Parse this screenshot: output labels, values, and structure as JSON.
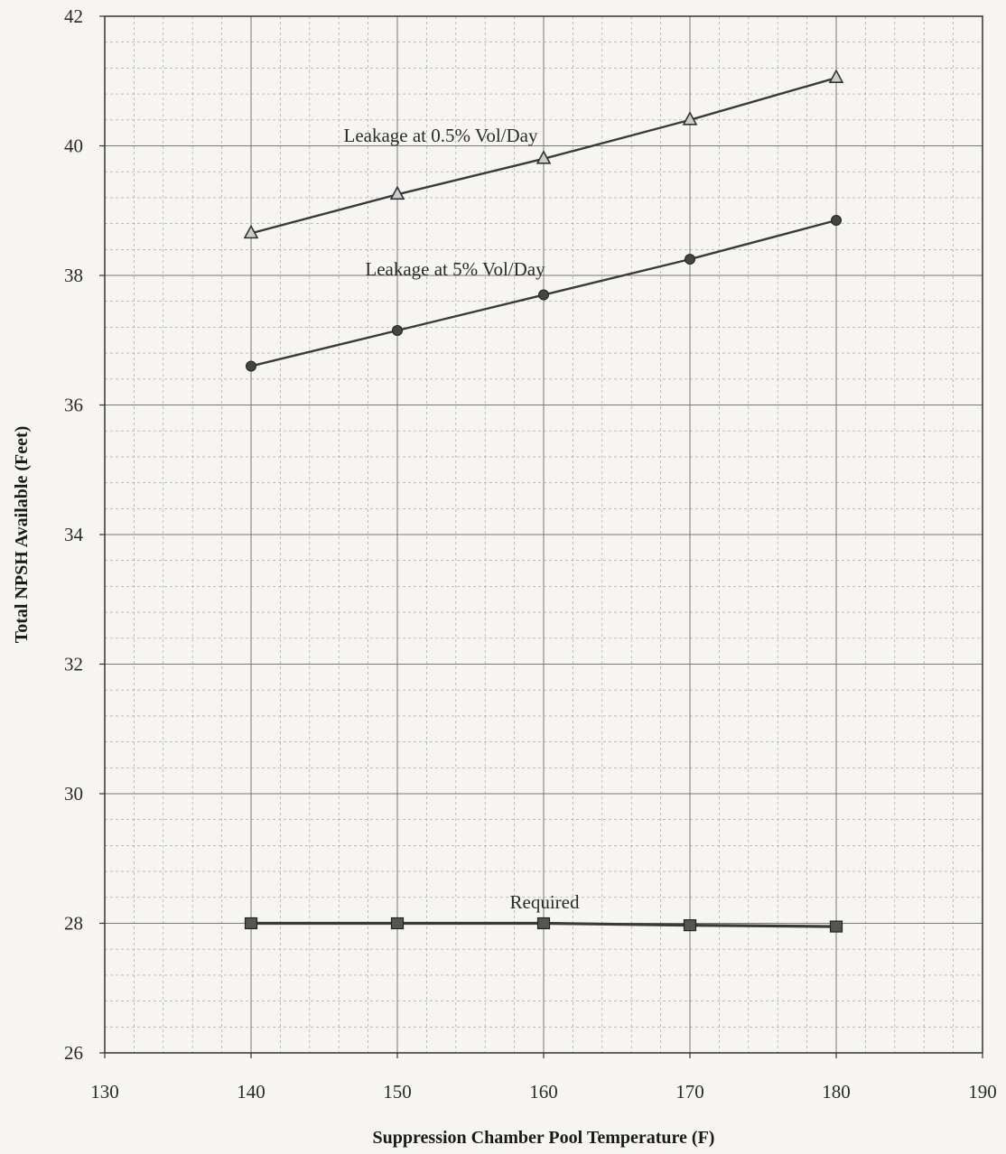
{
  "chart_data": {
    "type": "line",
    "title": "",
    "xlabel": "Suppression Chamber Pool Temperature (F)",
    "ylabel": "Total NPSH Available (Feet)",
    "xlim": [
      130,
      190
    ],
    "ylim": [
      26,
      42
    ],
    "xticks": [
      130,
      140,
      150,
      160,
      170,
      180,
      190
    ],
    "yticks": [
      26,
      28,
      30,
      32,
      34,
      36,
      38,
      40,
      42
    ],
    "grid": true,
    "legend": "none",
    "x": [
      140,
      150,
      160,
      170,
      180
    ],
    "series": [
      {
        "name": "Leakage at 0.5% Vol/Day",
        "marker": "triangle",
        "values": [
          38.65,
          39.25,
          39.8,
          40.4,
          41.05
        ]
      },
      {
        "name": "Leakage at 5% Vol/Day",
        "marker": "diamond",
        "values": [
          36.6,
          37.15,
          37.7,
          38.25,
          38.85
        ]
      },
      {
        "name": "Required",
        "marker": "square",
        "values": [
          28.0,
          28.0,
          28.0,
          27.97,
          27.95
        ]
      }
    ]
  }
}
